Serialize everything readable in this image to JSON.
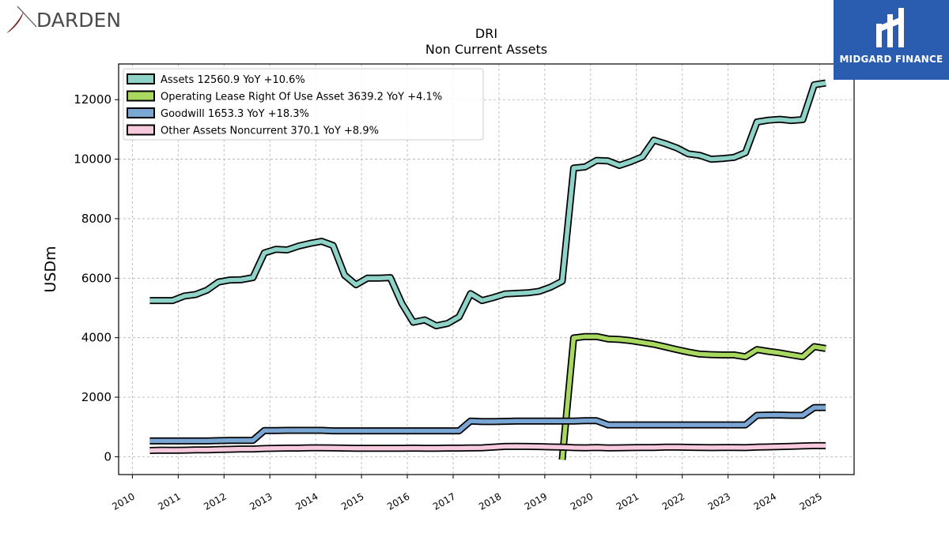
{
  "branding": {
    "left_logo_text": "DARDEN",
    "right_logo_text": "MIDGARD FINANCE",
    "right_logo_color": "#2a5db0"
  },
  "chart_data": {
    "type": "line",
    "title": "DRI",
    "subtitle": "Non Current  Assets",
    "xlabel": "",
    "ylabel": "USDm",
    "xlim": [
      2009.7,
      2025.75
    ],
    "ylim": [
      -600,
      13200
    ],
    "x_ticks": [
      2010,
      2011,
      2012,
      2013,
      2014,
      2015,
      2016,
      2017,
      2018,
      2019,
      2020,
      2021,
      2022,
      2023,
      2024,
      2025
    ],
    "x_tick_labels": [
      "2010",
      "2011",
      "2012",
      "2013",
      "2014",
      "2015",
      "2016",
      "2017",
      "2018",
      "2019",
      "2020",
      "2021",
      "2022",
      "2023",
      "2024",
      "2025"
    ],
    "y_ticks": [
      0,
      2000,
      4000,
      6000,
      8000,
      10000,
      12000
    ],
    "y_tick_labels": [
      "0",
      "2000",
      "4000",
      "6000",
      "8000",
      "10000",
      "12000"
    ],
    "grid": true,
    "legend_position": "top-left",
    "series": [
      {
        "name": "Assets",
        "legend_label": "Assets  12560.9 YoY +10.6%",
        "color": "#8fd3c8",
        "points": [
          [
            2010.38,
            5250
          ],
          [
            2010.63,
            5250
          ],
          [
            2010.88,
            5250
          ],
          [
            2011.13,
            5400
          ],
          [
            2011.38,
            5450
          ],
          [
            2011.63,
            5600
          ],
          [
            2011.88,
            5870
          ],
          [
            2012.13,
            5940
          ],
          [
            2012.38,
            5950
          ],
          [
            2012.63,
            6020
          ],
          [
            2012.88,
            6850
          ],
          [
            2013.13,
            6970
          ],
          [
            2013.38,
            6950
          ],
          [
            2013.63,
            7080
          ],
          [
            2013.88,
            7170
          ],
          [
            2014.13,
            7240
          ],
          [
            2014.38,
            7100
          ],
          [
            2014.63,
            6100
          ],
          [
            2014.88,
            5780
          ],
          [
            2015.13,
            6000
          ],
          [
            2015.38,
            6000
          ],
          [
            2015.63,
            6020
          ],
          [
            2015.88,
            5150
          ],
          [
            2016.13,
            4520
          ],
          [
            2016.38,
            4600
          ],
          [
            2016.63,
            4400
          ],
          [
            2016.88,
            4480
          ],
          [
            2017.13,
            4700
          ],
          [
            2017.38,
            5480
          ],
          [
            2017.63,
            5250
          ],
          [
            2017.88,
            5350
          ],
          [
            2018.13,
            5470
          ],
          [
            2018.38,
            5490
          ],
          [
            2018.63,
            5510
          ],
          [
            2018.88,
            5560
          ],
          [
            2019.13,
            5700
          ],
          [
            2019.38,
            5900
          ],
          [
            2019.63,
            9700
          ],
          [
            2019.88,
            9740
          ],
          [
            2020.13,
            9960
          ],
          [
            2020.38,
            9940
          ],
          [
            2020.63,
            9790
          ],
          [
            2020.88,
            9920
          ],
          [
            2021.13,
            10080
          ],
          [
            2021.38,
            10640
          ],
          [
            2021.63,
            10520
          ],
          [
            2021.88,
            10380
          ],
          [
            2022.13,
            10180
          ],
          [
            2022.38,
            10130
          ],
          [
            2022.63,
            10000
          ],
          [
            2022.88,
            10020
          ],
          [
            2023.13,
            10060
          ],
          [
            2023.38,
            10220
          ],
          [
            2023.63,
            11250
          ],
          [
            2023.88,
            11310
          ],
          [
            2024.13,
            11340
          ],
          [
            2024.38,
            11300
          ],
          [
            2024.63,
            11330
          ],
          [
            2024.88,
            12500
          ],
          [
            2025.13,
            12561
          ]
        ]
      },
      {
        "name": "Operating Lease Right Of Use Asset",
        "legend_label": "Operating Lease Right Of Use Asset  3639.2 YoY +4.1%",
        "color": "#a8d860",
        "points": [
          [
            2019.38,
            -100
          ],
          [
            2019.63,
            3990
          ],
          [
            2019.88,
            4040
          ],
          [
            2020.13,
            4040
          ],
          [
            2020.38,
            3960
          ],
          [
            2020.63,
            3940
          ],
          [
            2020.88,
            3900
          ],
          [
            2021.13,
            3840
          ],
          [
            2021.38,
            3780
          ],
          [
            2021.63,
            3690
          ],
          [
            2021.88,
            3600
          ],
          [
            2022.13,
            3520
          ],
          [
            2022.38,
            3450
          ],
          [
            2022.63,
            3430
          ],
          [
            2022.88,
            3420
          ],
          [
            2023.13,
            3420
          ],
          [
            2023.38,
            3360
          ],
          [
            2023.63,
            3600
          ],
          [
            2023.88,
            3540
          ],
          [
            2024.13,
            3490
          ],
          [
            2024.38,
            3420
          ],
          [
            2024.63,
            3360
          ],
          [
            2024.88,
            3700
          ],
          [
            2025.13,
            3639
          ]
        ]
      },
      {
        "name": "Goodwill",
        "legend_label": "Goodwill  1653.3 YoY +18.3%",
        "color": "#7aa6d4",
        "points": [
          [
            2010.38,
            530
          ],
          [
            2010.63,
            530
          ],
          [
            2010.88,
            530
          ],
          [
            2011.13,
            530
          ],
          [
            2011.38,
            530
          ],
          [
            2011.63,
            530
          ],
          [
            2011.88,
            540
          ],
          [
            2012.13,
            550
          ],
          [
            2012.38,
            550
          ],
          [
            2012.63,
            550
          ],
          [
            2012.88,
            880
          ],
          [
            2013.13,
            880
          ],
          [
            2013.38,
            885
          ],
          [
            2013.63,
            885
          ],
          [
            2013.88,
            885
          ],
          [
            2014.13,
            885
          ],
          [
            2014.38,
            870
          ],
          [
            2014.63,
            870
          ],
          [
            2014.88,
            870
          ],
          [
            2015.13,
            870
          ],
          [
            2015.38,
            870
          ],
          [
            2015.63,
            870
          ],
          [
            2015.88,
            870
          ],
          [
            2016.13,
            870
          ],
          [
            2016.38,
            870
          ],
          [
            2016.63,
            870
          ],
          [
            2016.88,
            870
          ],
          [
            2017.13,
            870
          ],
          [
            2017.38,
            1200
          ],
          [
            2017.63,
            1180
          ],
          [
            2017.88,
            1180
          ],
          [
            2018.13,
            1190
          ],
          [
            2018.38,
            1200
          ],
          [
            2018.63,
            1200
          ],
          [
            2018.88,
            1200
          ],
          [
            2019.13,
            1200
          ],
          [
            2019.38,
            1200
          ],
          [
            2019.63,
            1200
          ],
          [
            2019.88,
            1210
          ],
          [
            2020.13,
            1210
          ],
          [
            2020.38,
            1070
          ],
          [
            2020.63,
            1070
          ],
          [
            2020.88,
            1070
          ],
          [
            2021.13,
            1070
          ],
          [
            2021.38,
            1070
          ],
          [
            2021.63,
            1070
          ],
          [
            2021.88,
            1070
          ],
          [
            2022.13,
            1070
          ],
          [
            2022.38,
            1070
          ],
          [
            2022.63,
            1070
          ],
          [
            2022.88,
            1070
          ],
          [
            2023.13,
            1070
          ],
          [
            2023.38,
            1070
          ],
          [
            2023.63,
            1390
          ],
          [
            2023.88,
            1400
          ],
          [
            2024.13,
            1400
          ],
          [
            2024.38,
            1390
          ],
          [
            2024.63,
            1390
          ],
          [
            2024.88,
            1653
          ],
          [
            2025.13,
            1653
          ]
        ]
      },
      {
        "name": "Other Assets Noncurrent",
        "legend_label": "Other Assets Noncurrent  370.1 YoY +8.9%",
        "color": "#f7c9dc",
        "points": [
          [
            2010.38,
            210
          ],
          [
            2010.63,
            220
          ],
          [
            2010.88,
            215
          ],
          [
            2011.13,
            220
          ],
          [
            2011.38,
            230
          ],
          [
            2011.63,
            230
          ],
          [
            2011.88,
            240
          ],
          [
            2012.13,
            250
          ],
          [
            2012.38,
            260
          ],
          [
            2012.63,
            260
          ],
          [
            2012.88,
            275
          ],
          [
            2013.13,
            280
          ],
          [
            2013.38,
            290
          ],
          [
            2013.63,
            290
          ],
          [
            2013.88,
            300
          ],
          [
            2014.13,
            300
          ],
          [
            2014.38,
            295
          ],
          [
            2014.63,
            290
          ],
          [
            2014.88,
            280
          ],
          [
            2015.13,
            285
          ],
          [
            2015.38,
            280
          ],
          [
            2015.63,
            285
          ],
          [
            2015.88,
            285
          ],
          [
            2016.13,
            290
          ],
          [
            2016.38,
            285
          ],
          [
            2016.63,
            285
          ],
          [
            2016.88,
            290
          ],
          [
            2017.13,
            290
          ],
          [
            2017.38,
            295
          ],
          [
            2017.63,
            300
          ],
          [
            2017.88,
            320
          ],
          [
            2018.13,
            345
          ],
          [
            2018.38,
            350
          ],
          [
            2018.63,
            345
          ],
          [
            2018.88,
            340
          ],
          [
            2019.13,
            330
          ],
          [
            2019.38,
            320
          ],
          [
            2019.63,
            305
          ],
          [
            2019.88,
            300
          ],
          [
            2020.13,
            310
          ],
          [
            2020.38,
            295
          ],
          [
            2020.63,
            300
          ],
          [
            2020.88,
            305
          ],
          [
            2021.13,
            310
          ],
          [
            2021.38,
            310
          ],
          [
            2021.63,
            320
          ],
          [
            2021.88,
            320
          ],
          [
            2022.13,
            315
          ],
          [
            2022.38,
            310
          ],
          [
            2022.63,
            305
          ],
          [
            2022.88,
            310
          ],
          [
            2023.13,
            310
          ],
          [
            2023.38,
            305
          ],
          [
            2023.63,
            320
          ],
          [
            2023.88,
            330
          ],
          [
            2024.13,
            340
          ],
          [
            2024.38,
            350
          ],
          [
            2024.63,
            360
          ],
          [
            2024.88,
            370
          ],
          [
            2025.13,
            370
          ]
        ]
      }
    ]
  }
}
